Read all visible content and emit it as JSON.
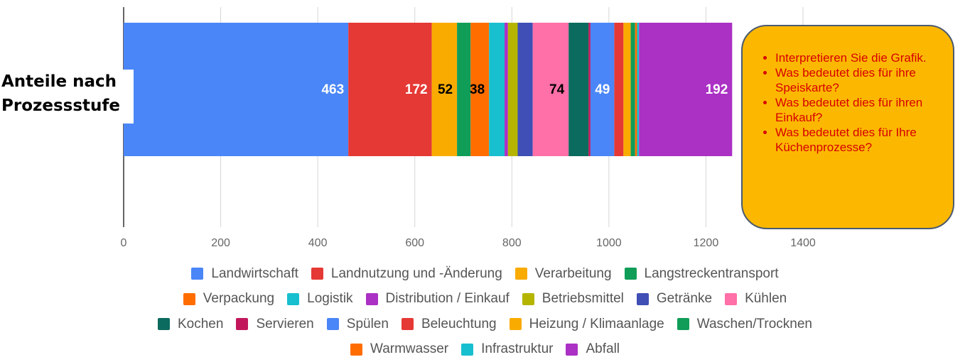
{
  "chart_data": {
    "type": "stacked_bar_horizontal",
    "categories": [
      "Anteile nach Prozessstufe"
    ],
    "series": [
      {
        "name": "Landwirtschaft",
        "color": "#4a86f7",
        "values": [
          463
        ],
        "data_labels": true,
        "label_color": "#ffffff"
      },
      {
        "name": "Landnutzung und -Änderung",
        "color": "#e53935",
        "values": [
          172
        ],
        "data_labels": true,
        "label_color": "#ffffff"
      },
      {
        "name": "Verarbeitung",
        "color": "#f9ab00",
        "values": [
          52
        ],
        "data_labels": true,
        "label_color": "#000000"
      },
      {
        "name": "Langstreckentransport",
        "color": "#0f9d58",
        "values": [
          28
        ]
      },
      {
        "name": "Verpackung",
        "color": "#ff6d01",
        "values": [
          38
        ],
        "data_labels": true,
        "label_color": "#000000"
      },
      {
        "name": "Logistik",
        "color": "#18bfcf",
        "values": [
          32
        ]
      },
      {
        "name": "Distribution / Einkauf",
        "color": "#ab30c4",
        "values": [
          7
        ]
      },
      {
        "name": "Betriebsmittel",
        "color": "#b5b500",
        "values": [
          20
        ]
      },
      {
        "name": "Getränke",
        "color": "#3f4fb5",
        "values": [
          31
        ]
      },
      {
        "name": "Kühlen",
        "color": "#ff6fa8",
        "values": [
          74
        ],
        "data_labels": true,
        "label_color": "#000000"
      },
      {
        "name": "Kochen",
        "color": "#0b6b5e",
        "values": [
          41
        ]
      },
      {
        "name": "Servieren",
        "color": "#c2185b",
        "values": [
          4
        ]
      },
      {
        "name": "Spülen",
        "color": "#4a86f7",
        "values": [
          49
        ],
        "data_labels": true,
        "label_color": "#ffffff"
      },
      {
        "name": "Beleuchtung",
        "color": "#e53935",
        "values": [
          19
        ]
      },
      {
        "name": "Heizung / Klimaanlage",
        "color": "#f9ab00",
        "values": [
          15
        ]
      },
      {
        "name": "Waschen/Trocknen",
        "color": "#0f9d58",
        "values": [
          9
        ]
      },
      {
        "name": "Warmwasser",
        "color": "#ff6d01",
        "values": [
          4
        ]
      },
      {
        "name": "Infrastruktur",
        "color": "#18bfcf",
        "values": [
          4
        ]
      },
      {
        "name": "Abfall",
        "color": "#ab30c4",
        "values": [
          192
        ],
        "data_labels": true,
        "label_color": "#ffffff"
      }
    ],
    "xlim": [
      0,
      1400
    ],
    "xticks": [
      0,
      200,
      400,
      600,
      800,
      1000,
      1200,
      1400
    ],
    "grid": true,
    "legend": "bottom",
    "callout": {
      "items": [
        "Interpretieren Sie die Grafik.",
        "Was bedeutet dies für ihre Speiskarte?",
        "Was bedeutet dies für ihren Einkauf?",
        "Was bedeutet dies für Ihre Küchenprozesse?"
      ]
    }
  }
}
